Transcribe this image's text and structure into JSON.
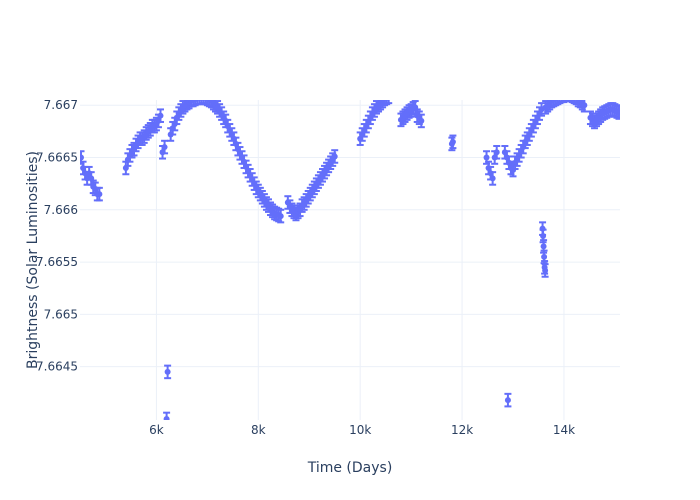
{
  "chart_data": {
    "type": "scatter",
    "title": "",
    "xlabel": "Time (Days)",
    "ylabel": "Brightness (Solar Luminosities)",
    "xlim": [
      4500,
      15100
    ],
    "ylim": [
      7.66399,
      7.66705
    ],
    "x_ticks": [
      6000,
      8000,
      10000,
      12000,
      14000
    ],
    "x_tick_labels": [
      "6k",
      "8k",
      "10k",
      "12k",
      "14k"
    ],
    "y_ticks": [
      7.6645,
      7.665,
      7.6655,
      7.666,
      7.6665,
      7.667
    ],
    "y_tick_labels": [
      "7.6645",
      "7.665",
      "7.6655",
      "7.666",
      "7.6665",
      "7.667"
    ],
    "grid": true,
    "legend": "none",
    "marker_color": "#636efa",
    "error_bar_half_width": 6e-05,
    "series": [
      {
        "points": [
          [
            4520,
            7.6665
          ],
          [
            4560,
            7.6664
          ],
          [
            4600,
            7.66635
          ],
          [
            4640,
            7.6663
          ],
          [
            4680,
            7.66635
          ],
          [
            4720,
            7.6663
          ],
          [
            4760,
            7.66622
          ],
          [
            4800,
            7.6662
          ],
          [
            4840,
            7.66615
          ],
          [
            4880,
            7.66615
          ],
          [
            5400,
            7.6664
          ],
          [
            5440,
            7.66648
          ],
          [
            5480,
            7.66652
          ],
          [
            5520,
            7.66656
          ],
          [
            5560,
            7.66658
          ],
          [
            5600,
            7.66662
          ],
          [
            5640,
            7.66665
          ],
          [
            5680,
            7.66668
          ],
          [
            5720,
            7.66668
          ],
          [
            5760,
            7.6667
          ],
          [
            5800,
            7.66673
          ],
          [
            5840,
            7.66675
          ],
          [
            5880,
            7.66677
          ],
          [
            5920,
            7.6668
          ],
          [
            5960,
            7.6668
          ],
          [
            6000,
            7.66682
          ],
          [
            6040,
            7.66685
          ],
          [
            6080,
            7.6669
          ],
          [
            6120,
            7.66655
          ],
          [
            6160,
            7.6666
          ],
          [
            6200,
            7.664
          ],
          [
            6220,
            7.66445
          ],
          [
            6280,
            7.66672
          ],
          [
            6320,
            7.66678
          ],
          [
            6360,
            7.66682
          ],
          [
            6400,
            7.66688
          ],
          [
            6440,
            7.66692
          ],
          [
            6480,
            7.66695
          ],
          [
            6520,
            7.66698
          ],
          [
            6560,
            7.667
          ],
          [
            6600,
            7.66702
          ],
          [
            6640,
            7.66703
          ],
          [
            6680,
            7.66705
          ],
          [
            6720,
            7.66705
          ],
          [
            6760,
            7.66706
          ],
          [
            6800,
            7.66707
          ],
          [
            6840,
            7.66707
          ],
          [
            6880,
            7.66707
          ],
          [
            6920,
            7.66708
          ],
          [
            6960,
            7.66707
          ],
          [
            7000,
            7.66706
          ],
          [
            7040,
            7.66705
          ],
          [
            7080,
            7.66704
          ],
          [
            7120,
            7.66702
          ],
          [
            7160,
            7.667
          ],
          [
            7200,
            7.66698
          ],
          [
            7240,
            7.66695
          ],
          [
            7280,
            7.66692
          ],
          [
            7320,
            7.66688
          ],
          [
            7360,
            7.66685
          ],
          [
            7400,
            7.6668
          ],
          [
            7440,
            7.66676
          ],
          [
            7480,
            7.66672
          ],
          [
            7520,
            7.66668
          ],
          [
            7560,
            7.66663
          ],
          [
            7600,
            7.66658
          ],
          [
            7640,
            7.66654
          ],
          [
            7680,
            7.6665
          ],
          [
            7720,
            7.66646
          ],
          [
            7760,
            7.66641
          ],
          [
            7800,
            7.66637
          ],
          [
            7840,
            7.66633
          ],
          [
            7880,
            7.66629
          ],
          [
            7920,
            7.66625
          ],
          [
            7960,
            7.66621
          ],
          [
            8000,
            7.66618
          ],
          [
            8040,
            7.66615
          ],
          [
            8080,
            7.66612
          ],
          [
            8120,
            7.66609
          ],
          [
            8160,
            7.66606
          ],
          [
            8200,
            7.66604
          ],
          [
            8240,
            7.66601
          ],
          [
            8280,
            7.66599
          ],
          [
            8320,
            7.66597
          ],
          [
            8360,
            7.66596
          ],
          [
            8400,
            7.66595
          ],
          [
            8440,
            7.66594
          ],
          [
            8580,
            7.66607
          ],
          [
            8620,
            7.66603
          ],
          [
            8660,
            7.666
          ],
          [
            8700,
            7.66598
          ],
          [
            8740,
            7.66596
          ],
          [
            8780,
            7.66598
          ],
          [
            8820,
            7.666
          ],
          [
            8860,
            7.66604
          ],
          [
            8900,
            7.66606
          ],
          [
            8940,
            7.66609
          ],
          [
            8980,
            7.66612
          ],
          [
            9020,
            7.66615
          ],
          [
            9060,
            7.66618
          ],
          [
            9100,
            7.66621
          ],
          [
            9140,
            7.66624
          ],
          [
            9180,
            7.66627
          ],
          [
            9220,
            7.6663
          ],
          [
            9260,
            7.66633
          ],
          [
            9300,
            7.66636
          ],
          [
            9340,
            7.66639
          ],
          [
            9380,
            7.66642
          ],
          [
            9420,
            7.66645
          ],
          [
            9460,
            7.66648
          ],
          [
            9500,
            7.66651
          ],
          [
            10000,
            7.66668
          ],
          [
            10040,
            7.66672
          ],
          [
            10080,
            7.66676
          ],
          [
            10120,
            7.6668
          ],
          [
            10160,
            7.66684
          ],
          [
            10200,
            7.66688
          ],
          [
            10240,
            7.66692
          ],
          [
            10280,
            7.66695
          ],
          [
            10320,
            7.66698
          ],
          [
            10360,
            7.667
          ],
          [
            10400,
            7.66702
          ],
          [
            10440,
            7.66704
          ],
          [
            10480,
            7.66706
          ],
          [
            10520,
            7.66707
          ],
          [
            10560,
            7.66708
          ],
          [
            10800,
            7.66686
          ],
          [
            10840,
            7.66688
          ],
          [
            10880,
            7.6669
          ],
          [
            10920,
            7.66692
          ],
          [
            10960,
            7.66694
          ],
          [
            11000,
            7.66695
          ],
          [
            11040,
            7.66697
          ],
          [
            11080,
            7.66698
          ],
          [
            11120,
            7.6669
          ],
          [
            11160,
            7.66688
          ],
          [
            11200,
            7.66685
          ],
          [
            11800,
            7.66663
          ],
          [
            11820,
            7.66665
          ],
          [
            12480,
            7.6665
          ],
          [
            12520,
            7.6664
          ],
          [
            12560,
            7.66635
          ],
          [
            12600,
            7.6663
          ],
          [
            12640,
            7.6665
          ],
          [
            12680,
            7.66655
          ],
          [
            12840,
            7.66655
          ],
          [
            12880,
            7.6665
          ],
          [
            12900,
            7.66418
          ],
          [
            12920,
            7.66645
          ],
          [
            12960,
            7.6664
          ],
          [
            13000,
            7.66638
          ],
          [
            13040,
            7.66645
          ],
          [
            13080,
            7.66648
          ],
          [
            13120,
            7.66652
          ],
          [
            13160,
            7.66656
          ],
          [
            13200,
            7.6666
          ],
          [
            13240,
            7.66665
          ],
          [
            13280,
            7.66668
          ],
          [
            13320,
            7.66672
          ],
          [
            13360,
            7.66676
          ],
          [
            13400,
            7.6668
          ],
          [
            13440,
            7.66684
          ],
          [
            13480,
            7.66688
          ],
          [
            13520,
            7.66692
          ],
          [
            13560,
            7.66696
          ],
          [
            13580,
            7.66582
          ],
          [
            13590,
            7.66575
          ],
          [
            13600,
            7.66565
          ],
          [
            13610,
            7.66555
          ],
          [
            13620,
            7.66545
          ],
          [
            13630,
            7.66542
          ],
          [
            13640,
            7.66698
          ],
          [
            13680,
            7.667
          ],
          [
            13720,
            7.66702
          ],
          [
            13760,
            7.66704
          ],
          [
            13800,
            7.66705
          ],
          [
            13840,
            7.66706
          ],
          [
            13880,
            7.66707
          ],
          [
            13920,
            7.66708
          ],
          [
            13960,
            7.66709
          ],
          [
            14000,
            7.66709
          ],
          [
            14040,
            7.6671
          ],
          [
            14080,
            7.6671
          ],
          [
            14120,
            7.6671
          ],
          [
            14160,
            7.66709
          ],
          [
            14200,
            7.66708
          ],
          [
            14240,
            7.66707
          ],
          [
            14280,
            7.66705
          ],
          [
            14320,
            7.66704
          ],
          [
            14360,
            7.66702
          ],
          [
            14400,
            7.667
          ],
          [
            14520,
            7.66688
          ],
          [
            14560,
            7.66686
          ],
          [
            14600,
            7.66684
          ],
          [
            14640,
            7.66686
          ],
          [
            14680,
            7.66688
          ],
          [
            14720,
            7.6669
          ],
          [
            14760,
            7.66692
          ],
          [
            14800,
            7.66693
          ],
          [
            14840,
            7.66694
          ],
          [
            14880,
            7.66695
          ],
          [
            14920,
            7.66696
          ],
          [
            14960,
            7.66696
          ],
          [
            15000,
            7.66695
          ],
          [
            15040,
            7.66694
          ],
          [
            15080,
            7.66693
          ]
        ]
      }
    ]
  }
}
